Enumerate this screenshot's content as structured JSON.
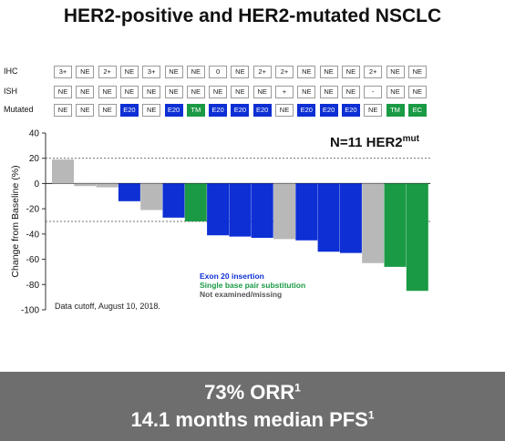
{
  "title": "HER2-positive and HER2-mutated NSCLC",
  "table": {
    "row_labels": [
      "IHC",
      "ISH",
      "Mutated"
    ],
    "columns": [
      {
        "ihc": "3+",
        "ish": "NE",
        "mut": "NE"
      },
      {
        "ihc": "NE",
        "ish": "NE",
        "mut": "NE"
      },
      {
        "ihc": "2+",
        "ish": "NE",
        "mut": "NE"
      },
      {
        "ihc": "NE",
        "ish": "NE",
        "mut": "E20"
      },
      {
        "ihc": "3+",
        "ish": "NE",
        "mut": "NE"
      },
      {
        "ihc": "NE",
        "ish": "NE",
        "mut": "E20"
      },
      {
        "ihc": "NE",
        "ish": "NE",
        "mut": "TM"
      },
      {
        "ihc": "0",
        "ish": "NE",
        "mut": "E20"
      },
      {
        "ihc": "NE",
        "ish": "NE",
        "mut": "E20"
      },
      {
        "ihc": "2+",
        "ish": "NE",
        "mut": "E20"
      },
      {
        "ihc": "2+",
        "ish": "+",
        "mut": "NE"
      },
      {
        "ihc": "NE",
        "ish": "NE",
        "mut": "E20"
      },
      {
        "ihc": "NE",
        "ish": "NE",
        "mut": "E20"
      },
      {
        "ihc": "NE",
        "ish": "NE",
        "mut": "E20"
      },
      {
        "ihc": "2+",
        "ish": "-",
        "mut": "NE"
      },
      {
        "ihc": "NE",
        "ish": "NE",
        "mut": "TM"
      },
      {
        "ihc": "NE",
        "ish": "NE",
        "mut": "EC"
      }
    ]
  },
  "colors": {
    "exon20": "#0d2fd4",
    "single_base": "#1a9a45",
    "not_examined": "#b8b8b8",
    "banner": "#6e6e6e"
  },
  "chart_data": {
    "type": "bar",
    "title": "",
    "annotation": "N=11 HER2",
    "annotation_superscript": "mut",
    "ylabel": "Change from Baseline (%)",
    "ylim": [
      -100,
      40
    ],
    "yticks": [
      40,
      20,
      0,
      -20,
      -40,
      -60,
      -80,
      -100
    ],
    "reference_lines": [
      20,
      -30
    ],
    "values": [
      19,
      -2,
      -3,
      -14,
      -21,
      -27,
      -30,
      -41,
      -42,
      -43,
      -44,
      -45,
      -54,
      -55,
      -63,
      -66,
      -85
    ],
    "categories_type": [
      "not_examined",
      "not_examined",
      "not_examined",
      "exon20",
      "not_examined",
      "exon20",
      "single_base",
      "exon20",
      "exon20",
      "exon20",
      "not_examined",
      "exon20",
      "exon20",
      "exon20",
      "not_examined",
      "single_base",
      "single_base"
    ],
    "legend": [
      {
        "label": "Exon 20 insertion",
        "key": "exon20"
      },
      {
        "label": "Single base pair substitution",
        "key": "single_base"
      },
      {
        "label": "Not examined/missing",
        "key": "not_examined"
      }
    ],
    "footnote": "Data cutoff, August 10, 2018."
  },
  "banner": {
    "line1_text": "73% ORR",
    "line1_sup": "1",
    "line2_text": "14.1 months median PFS",
    "line2_sup": "1"
  }
}
